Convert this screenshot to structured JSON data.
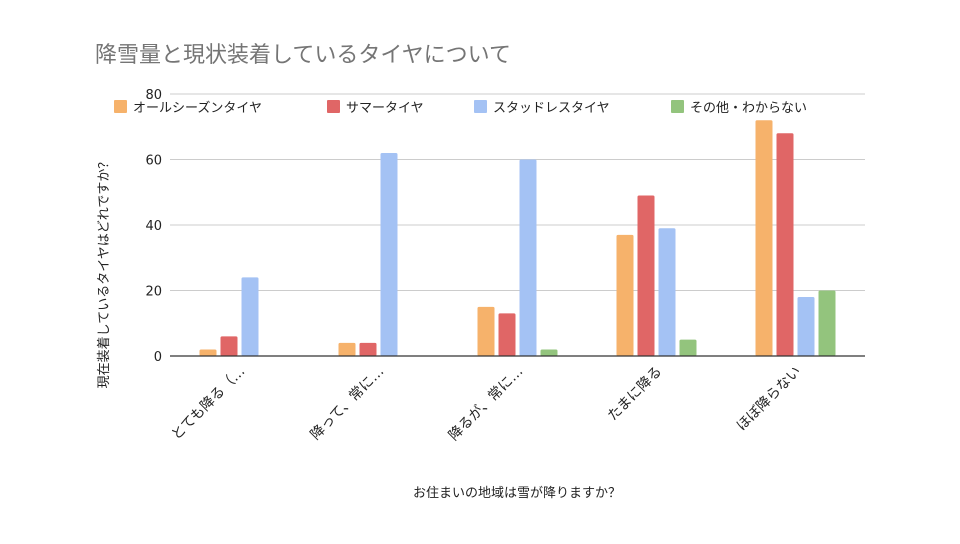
{
  "chart_data": {
    "type": "bar",
    "title": "降雪量と現状装着しているタイヤについて",
    "xlabel": "お住まいの地域は雪が降りますか？",
    "ylabel": "現在装着しているタイヤはどれですか？",
    "ylim": [
      0,
      80
    ],
    "yticks": [
      0,
      20,
      40,
      60,
      80
    ],
    "grid": true,
    "legend_position": "top",
    "categories": [
      "とても降る（…",
      "降って、常に…",
      "降るが、常に…",
      "たまに降る",
      "ほぼ降らない"
    ],
    "series": [
      {
        "name": "オールシーズンタイヤ",
        "color": "#f6b26b",
        "values": [
          2,
          4,
          15,
          37,
          72
        ]
      },
      {
        "name": "サマータイヤ",
        "color": "#e06666",
        "values": [
          6,
          4,
          13,
          49,
          68
        ]
      },
      {
        "name": "スタッドレスタイヤ",
        "color": "#a4c2f4",
        "values": [
          24,
          62,
          60,
          39,
          18
        ]
      },
      {
        "name": "その他・わからない",
        "color": "#93c47d",
        "values": [
          0,
          0,
          2,
          5,
          20
        ]
      }
    ]
  },
  "colors": {
    "title": "#757575",
    "axis_text": "#222222",
    "grid": "#cccccc",
    "axis": "#333333"
  }
}
